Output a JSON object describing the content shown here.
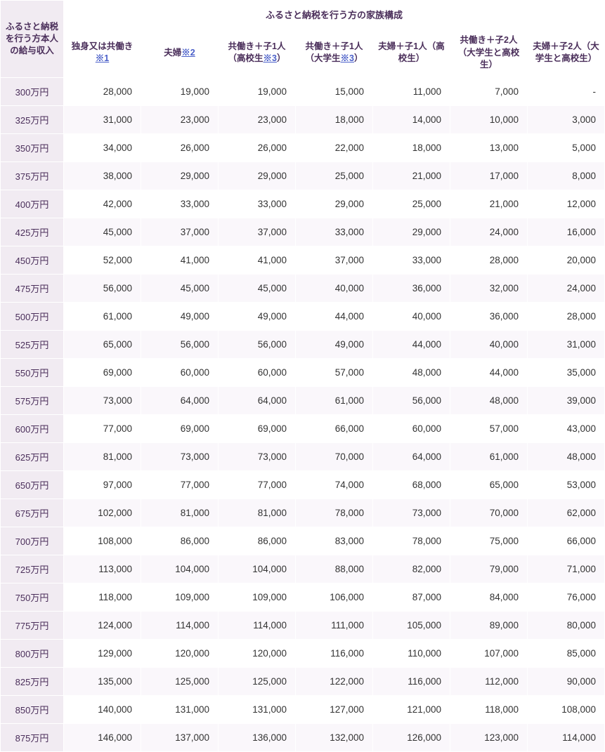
{
  "table": {
    "row_header_title": "ふるさと納税を行う方本人の給与収入",
    "super_header": "ふるさと納税を行う方の家族構成",
    "columns": [
      {
        "label_pre": "独身又は共働き",
        "note": "※1",
        "label_post": ""
      },
      {
        "label_pre": "夫婦",
        "note": "※2",
        "label_post": ""
      },
      {
        "label_pre": "共働き＋子1人（高校生",
        "note": "※3",
        "label_post": "）"
      },
      {
        "label_pre": "共働き＋子1人（大学生",
        "note": "※3",
        "label_post": "）"
      },
      {
        "label_pre": "夫婦＋子1人（高校生）",
        "note": "",
        "label_post": ""
      },
      {
        "label_pre": "共働き＋子2人（大学生と高校生）",
        "note": "",
        "label_post": ""
      },
      {
        "label_pre": "夫婦＋子2人（大学生と高校生）",
        "note": "",
        "label_post": ""
      }
    ],
    "rows": [
      {
        "income": "300万円",
        "values": [
          "28,000",
          "19,000",
          "19,000",
          "15,000",
          "11,000",
          "7,000",
          "-"
        ]
      },
      {
        "income": "325万円",
        "values": [
          "31,000",
          "23,000",
          "23,000",
          "18,000",
          "14,000",
          "10,000",
          "3,000"
        ]
      },
      {
        "income": "350万円",
        "values": [
          "34,000",
          "26,000",
          "26,000",
          "22,000",
          "18,000",
          "13,000",
          "5,000"
        ]
      },
      {
        "income": "375万円",
        "values": [
          "38,000",
          "29,000",
          "29,000",
          "25,000",
          "21,000",
          "17,000",
          "8,000"
        ]
      },
      {
        "income": "400万円",
        "values": [
          "42,000",
          "33,000",
          "33,000",
          "29,000",
          "25,000",
          "21,000",
          "12,000"
        ]
      },
      {
        "income": "425万円",
        "values": [
          "45,000",
          "37,000",
          "37,000",
          "33,000",
          "29,000",
          "24,000",
          "16,000"
        ]
      },
      {
        "income": "450万円",
        "values": [
          "52,000",
          "41,000",
          "41,000",
          "37,000",
          "33,000",
          "28,000",
          "20,000"
        ]
      },
      {
        "income": "475万円",
        "values": [
          "56,000",
          "45,000",
          "45,000",
          "40,000",
          "36,000",
          "32,000",
          "24,000"
        ]
      },
      {
        "income": "500万円",
        "values": [
          "61,000",
          "49,000",
          "49,000",
          "44,000",
          "40,000",
          "36,000",
          "28,000"
        ]
      },
      {
        "income": "525万円",
        "values": [
          "65,000",
          "56,000",
          "56,000",
          "49,000",
          "44,000",
          "40,000",
          "31,000"
        ]
      },
      {
        "income": "550万円",
        "values": [
          "69,000",
          "60,000",
          "60,000",
          "57,000",
          "48,000",
          "44,000",
          "35,000"
        ]
      },
      {
        "income": "575万円",
        "values": [
          "73,000",
          "64,000",
          "64,000",
          "61,000",
          "56,000",
          "48,000",
          "39,000"
        ]
      },
      {
        "income": "600万円",
        "values": [
          "77,000",
          "69,000",
          "69,000",
          "66,000",
          "60,000",
          "57,000",
          "43,000"
        ]
      },
      {
        "income": "625万円",
        "values": [
          "81,000",
          "73,000",
          "73,000",
          "70,000",
          "64,000",
          "61,000",
          "48,000"
        ]
      },
      {
        "income": "650万円",
        "values": [
          "97,000",
          "77,000",
          "77,000",
          "74,000",
          "68,000",
          "65,000",
          "53,000"
        ]
      },
      {
        "income": "675万円",
        "values": [
          "102,000",
          "81,000",
          "81,000",
          "78,000",
          "73,000",
          "70,000",
          "62,000"
        ]
      },
      {
        "income": "700万円",
        "values": [
          "108,000",
          "86,000",
          "86,000",
          "83,000",
          "78,000",
          "75,000",
          "66,000"
        ]
      },
      {
        "income": "725万円",
        "values": [
          "113,000",
          "104,000",
          "104,000",
          "88,000",
          "82,000",
          "79,000",
          "71,000"
        ]
      },
      {
        "income": "750万円",
        "values": [
          "118,000",
          "109,000",
          "109,000",
          "106,000",
          "87,000",
          "84,000",
          "76,000"
        ]
      },
      {
        "income": "775万円",
        "values": [
          "124,000",
          "114,000",
          "114,000",
          "111,000",
          "105,000",
          "89,000",
          "80,000"
        ]
      },
      {
        "income": "800万円",
        "values": [
          "129,000",
          "120,000",
          "120,000",
          "116,000",
          "110,000",
          "107,000",
          "85,000"
        ]
      },
      {
        "income": "825万円",
        "values": [
          "135,000",
          "125,000",
          "125,000",
          "122,000",
          "116,000",
          "112,000",
          "90,000"
        ]
      },
      {
        "income": "850万円",
        "values": [
          "140,000",
          "131,000",
          "131,000",
          "127,000",
          "121,000",
          "118,000",
          "108,000"
        ]
      },
      {
        "income": "875万円",
        "values": [
          "146,000",
          "137,000",
          "136,000",
          "132,000",
          "126,000",
          "123,000",
          "114,000"
        ]
      }
    ]
  },
  "style": {
    "header_bg": "#f1ebf2",
    "header_text": "#4a2e5a",
    "link_color": "#4a5fc9",
    "stripe_bg": "#faf7fb",
    "body_text": "#333333",
    "border_color": "#ffffff",
    "font_size_header": 12.5,
    "font_size_cell": 13.5
  }
}
